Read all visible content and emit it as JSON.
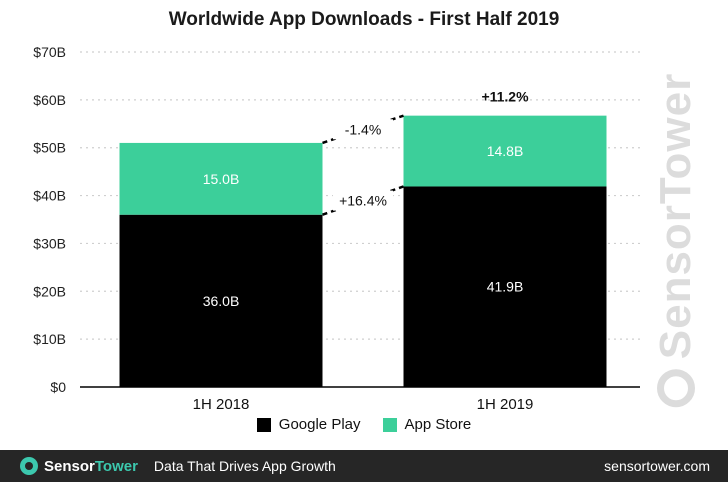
{
  "chart_data": {
    "type": "bar",
    "stacked": true,
    "title": "Worldwide App Downloads - First Half 2019",
    "categories": [
      "1H 2018",
      "1H 2019"
    ],
    "series": [
      {
        "name": "Google Play",
        "values": [
          36.0,
          41.9
        ],
        "labels": [
          "36.0B",
          "41.9B"
        ],
        "color": "#000000",
        "label_color": "#ffffff"
      },
      {
        "name": "App Store",
        "values": [
          15.0,
          14.8
        ],
        "labels": [
          "15.0B",
          "14.8B"
        ],
        "color": "#3ccf9a",
        "label_color": "#ffffff"
      }
    ],
    "ylim": [
      0,
      70
    ],
    "yticks": [
      0,
      10,
      20,
      30,
      40,
      50,
      60,
      70
    ],
    "ytick_labels": [
      "$0",
      "$10B",
      "$20B",
      "$30B",
      "$40B",
      "$50B",
      "$60B",
      "$70B"
    ],
    "grid": true,
    "legend_position": "bottom",
    "annotations": {
      "app_store_change": "-1.4%",
      "google_play_change": "+16.4%",
      "total_change": "+11.2%"
    }
  },
  "watermark": {
    "text": "SensorTower"
  },
  "footer": {
    "brand_sensor": "Sensor",
    "brand_tower": "Tower",
    "tagline": "Data That Drives App Growth",
    "url": "sensortower.com",
    "background": "#262626",
    "accent": "#3cc8ae"
  }
}
